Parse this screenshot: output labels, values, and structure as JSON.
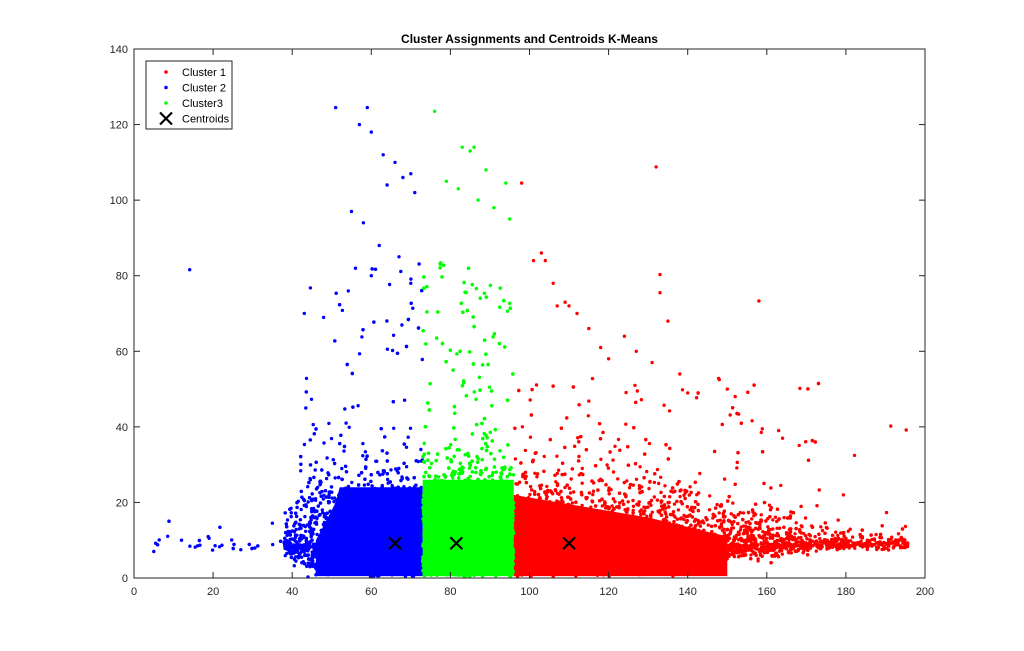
{
  "chart_data": {
    "type": "scatter",
    "title": "Cluster Assignments and Centroids K-Means",
    "xlabel": "",
    "ylabel": "",
    "xlim": [
      0,
      200
    ],
    "ylim": [
      0,
      140
    ],
    "xticks": [
      0,
      20,
      40,
      60,
      80,
      100,
      120,
      140,
      160,
      180,
      200
    ],
    "yticks": [
      0,
      20,
      40,
      60,
      80,
      100,
      120,
      140
    ],
    "grid": false,
    "legend_position": "top-left",
    "series": [
      {
        "name": "Cluster 1",
        "color": "#ff0000",
        "marker": "dot",
        "x_range": [
          96,
          196
        ],
        "dense_band_y": [
          0,
          30
        ],
        "outliers": [
          [
            98,
            104.5
          ],
          [
            101,
            84
          ],
          [
            103,
            86
          ],
          [
            104,
            84
          ],
          [
            106,
            78
          ],
          [
            107,
            72
          ],
          [
            110,
            72
          ],
          [
            109,
            73
          ],
          [
            112,
            70
          ],
          [
            115,
            66
          ],
          [
            118,
            61
          ],
          [
            120,
            58
          ],
          [
            124,
            64
          ],
          [
            127,
            60
          ],
          [
            131,
            57
          ],
          [
            132,
            108.8
          ],
          [
            133,
            80.3
          ],
          [
            133,
            75.5
          ],
          [
            135,
            68
          ],
          [
            138,
            54
          ],
          [
            140,
            49
          ],
          [
            148,
            52.5
          ],
          [
            150,
            50
          ],
          [
            152,
            48
          ],
          [
            158,
            73.3
          ],
          [
            163,
            39
          ],
          [
            164,
            37
          ]
        ]
      },
      {
        "name": "Cluster 2",
        "color": "#0000ff",
        "marker": "dot",
        "x_range": [
          5,
          73
        ],
        "dense_band_y": [
          0,
          30
        ],
        "outliers": [
          [
            5,
            7
          ],
          [
            12,
            10
          ],
          [
            19,
            10.5
          ],
          [
            27,
            7.5
          ],
          [
            35,
            14.5
          ],
          [
            51,
            124.5
          ],
          [
            59,
            124.5
          ],
          [
            57,
            120
          ],
          [
            60,
            118
          ],
          [
            63,
            112
          ],
          [
            64,
            104
          ],
          [
            66,
            110
          ],
          [
            68,
            106
          ],
          [
            70,
            107
          ],
          [
            71,
            102
          ],
          [
            55,
            97
          ],
          [
            58,
            94
          ],
          [
            62,
            88
          ],
          [
            56,
            82
          ],
          [
            60,
            80
          ],
          [
            67,
            85
          ],
          [
            70,
            78
          ]
        ]
      },
      {
        "name": "Cluster3",
        "color": "#00ff00",
        "marker": "dot",
        "x_range": [
          73,
          96
        ],
        "dense_band_y": [
          0,
          30
        ],
        "outliers": [
          [
            76,
            123.5
          ],
          [
            83,
            114
          ],
          [
            85,
            113
          ],
          [
            86,
            114
          ],
          [
            89,
            108
          ],
          [
            94,
            104.5
          ],
          [
            79,
            105
          ],
          [
            82,
            103
          ],
          [
            87,
            100
          ],
          [
            91,
            98
          ],
          [
            95,
            95
          ]
        ]
      },
      {
        "name": "Centroids",
        "color": "#000000",
        "marker": "x",
        "points": [
          [
            66,
            9.2
          ],
          [
            81.5,
            9.2
          ],
          [
            110,
            9.2
          ]
        ]
      }
    ]
  }
}
